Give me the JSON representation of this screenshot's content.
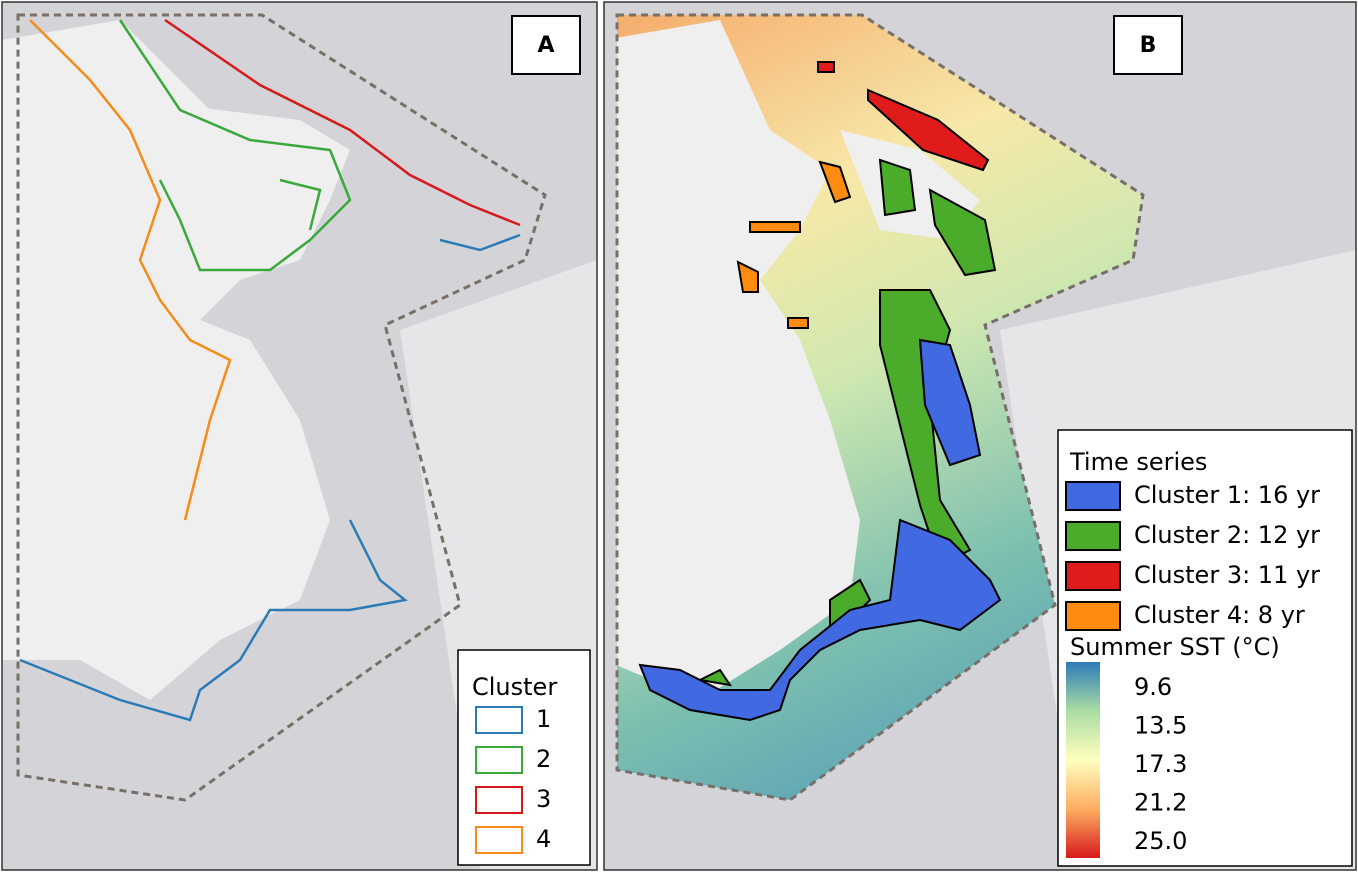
{
  "panels": [
    {
      "label": "A",
      "legend": {
        "title": "Cluster",
        "items": [
          "1",
          "2",
          "3",
          "4"
        ]
      }
    },
    {
      "label": "B",
      "legend": {
        "title": "Time series",
        "items": [
          "Cluster 1: 16 yr",
          "Cluster 2: 12 yr",
          "Cluster 3: 11 yr",
          "Cluster 4: 8 yr"
        ],
        "colorbar": {
          "title": "Summer SST (°C)",
          "labels": [
            "9.6",
            "13.5",
            "17.3",
            "21.2",
            "25.0"
          ]
        }
      }
    }
  ]
}
